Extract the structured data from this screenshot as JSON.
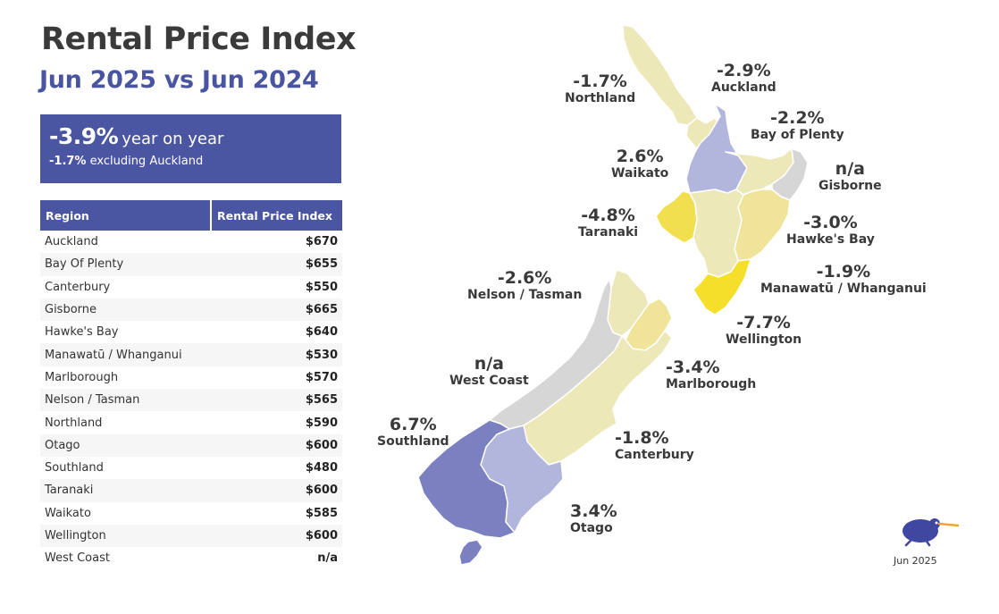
{
  "title": "Rental Price Index",
  "subtitle": "Jun 2025 vs Jun 2024",
  "kpi": {
    "value": "-3.9%",
    "suffix": "year on year",
    "secondary_value": "-1.7%",
    "secondary_suffix": "excluding Auckland"
  },
  "table": {
    "headers": [
      "Region",
      "Rental Price Index"
    ],
    "rows": [
      {
        "region": "Auckland",
        "index": "$670"
      },
      {
        "region": "Bay Of Plenty",
        "index": "$655"
      },
      {
        "region": "Canterbury",
        "index": "$550"
      },
      {
        "region": "Gisborne",
        "index": "$665"
      },
      {
        "region": "Hawke's Bay",
        "index": "$640"
      },
      {
        "region": "Manawatū / Whanganui",
        "index": "$530"
      },
      {
        "region": "Marlborough",
        "index": "$570"
      },
      {
        "region": "Nelson / Tasman",
        "index": "$565"
      },
      {
        "region": "Northland",
        "index": "$590"
      },
      {
        "region": "Otago",
        "index": "$600"
      },
      {
        "region": "Southland",
        "index": "$480"
      },
      {
        "region": "Taranaki",
        "index": "$600"
      },
      {
        "region": "Waikato",
        "index": "$585"
      },
      {
        "region": "Wellington",
        "index": "$600"
      },
      {
        "region": "West Coast",
        "index": "n/a"
      }
    ]
  },
  "map": {
    "colors": {
      "pale_yellow": "#ece8b8",
      "mid_yellow": "#efe49a",
      "yellow": "#f1df50",
      "bright_yellow": "#f6df2a",
      "grey": "#d6d6d6",
      "light_purple": "#b2b5dc",
      "purple": "#7b80c0"
    },
    "labels": {
      "northland": {
        "pct": "-1.7%",
        "name": "Northland"
      },
      "auckland": {
        "pct": "-2.9%",
        "name": "Auckland"
      },
      "bay_of_plenty": {
        "pct": "-2.2%",
        "name": "Bay of Plenty"
      },
      "waikato": {
        "pct": "2.6%",
        "name": "Waikato"
      },
      "gisborne": {
        "pct": "n/a",
        "name": "Gisborne"
      },
      "taranaki": {
        "pct": "-4.8%",
        "name": "Taranaki"
      },
      "hawkes_bay": {
        "pct": "-3.0%",
        "name": "Hawke's Bay"
      },
      "nelson_tasman": {
        "pct": "-2.6%",
        "name": "Nelson / Tasman"
      },
      "manawatu": {
        "pct": "-1.9%",
        "name": "Manawatū / Whanganui"
      },
      "wellington": {
        "pct": "-7.7%",
        "name": "Wellington"
      },
      "west_coast": {
        "pct": "n/a",
        "name": "West Coast"
      },
      "marlborough": {
        "pct": "-3.4%",
        "name": "Marlborough"
      },
      "southland": {
        "pct": "6.7%",
        "name": "Southland"
      },
      "canterbury": {
        "pct": "-1.8%",
        "name": "Canterbury"
      },
      "otago": {
        "pct": "3.4%",
        "name": "Otago"
      }
    }
  },
  "footer": {
    "date": "Jun 2025",
    "logo_icon": "kiwi-bird-icon"
  }
}
